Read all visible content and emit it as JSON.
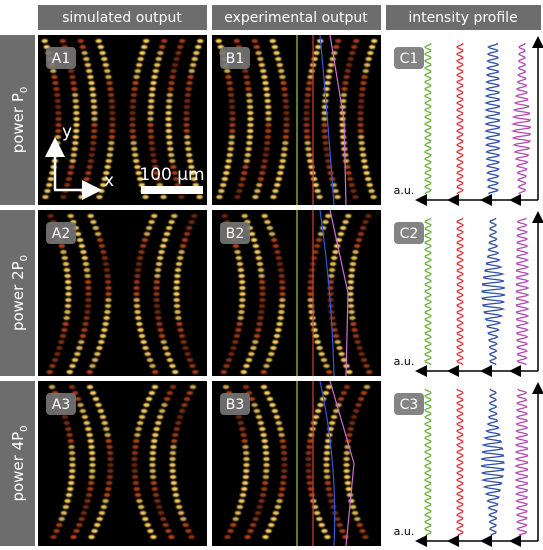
{
  "columns": [
    "simulated output",
    "experimental output",
    "intensity profile"
  ],
  "rows": [
    {
      "label": "power P",
      "sub": "0"
    },
    {
      "label": "power 2P",
      "sub": "0"
    },
    {
      "label": "power 4P",
      "sub": "0"
    }
  ],
  "panels": [
    [
      "A1",
      "B1",
      "C1"
    ],
    [
      "A2",
      "B2",
      "C2"
    ],
    [
      "A3",
      "B3",
      "C3"
    ]
  ],
  "axes": {
    "x": "x",
    "y": "y",
    "scale": "100 μm"
  },
  "profile_unit": "a.u."
}
